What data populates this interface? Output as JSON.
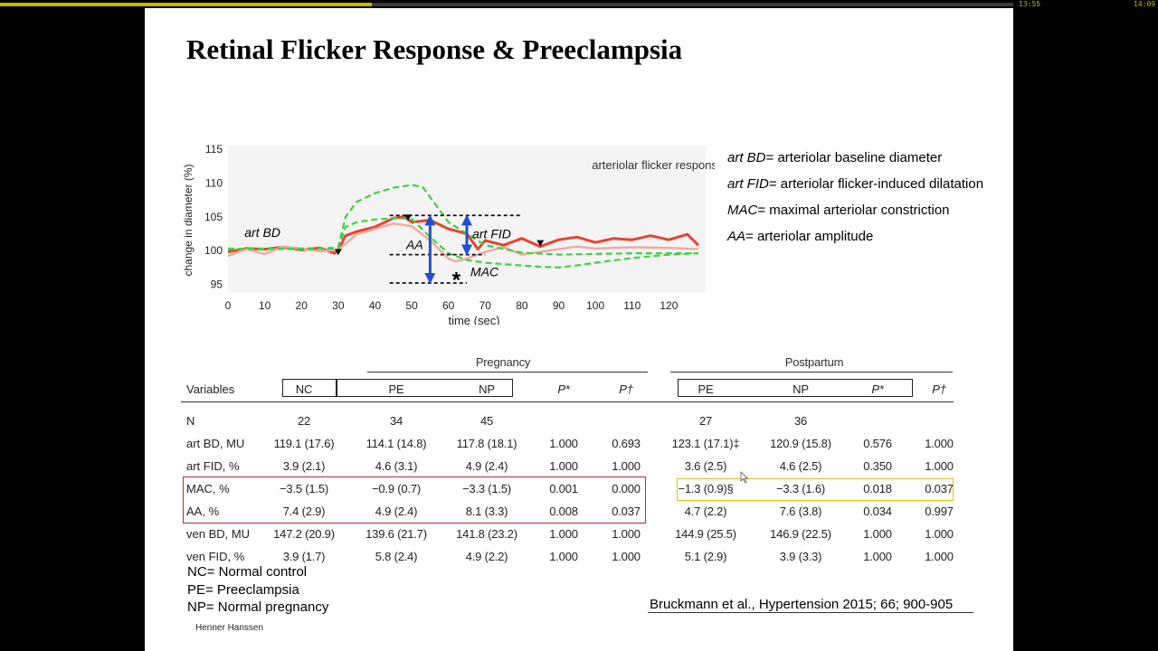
{
  "player": {
    "time_elapsed": "13:55",
    "time_total": "14:09",
    "progress": 0.367,
    "buffered": 0.145,
    "progress_color": "#c9b400"
  },
  "slide": {
    "title": "Retinal Flicker Response & Preeclampsia",
    "author": "Henner Hanssen",
    "citation": "Bruckmann et al., Hypertension 2015; 66; 900-905"
  },
  "legend": [
    {
      "term": "art BD",
      "def": "= arteriolar baseline diameter"
    },
    {
      "term": "art FID",
      "def": "= arteriolar flicker-induced dilatation"
    },
    {
      "term": "MAC",
      "def": "= maximal arteriolar constriction"
    },
    {
      "term": "AA",
      "def": "= arteriolar amplitude"
    }
  ],
  "notes": [
    "NC= Normal control",
    "PE= Preeclampsia",
    "NP= Normal pregnancy"
  ],
  "chart_data": {
    "type": "line",
    "title": "arteriolar flicker response",
    "xlabel": "time (sec)",
    "ylabel": "change in diameter (%)",
    "xlim": [
      0,
      130
    ],
    "ylim": [
      94,
      115
    ],
    "xticks": [
      0,
      10,
      20,
      30,
      40,
      50,
      60,
      70,
      80,
      90,
      100,
      110,
      120
    ],
    "yticks": [
      95,
      100,
      105,
      110,
      115
    ],
    "annotations": {
      "art_bd": "art BD",
      "art_fid": "art FID",
      "aa": "AA",
      "mac": "MAC",
      "star": "*"
    },
    "series": [
      {
        "color": "#e8432e",
        "x": [
          0,
          5,
          10,
          15,
          20,
          25,
          29,
          30,
          32,
          35,
          40,
          45,
          48,
          50,
          55,
          60,
          65,
          68,
          70,
          75,
          80,
          85,
          90,
          95,
          100,
          105,
          110,
          115,
          120,
          125,
          128
        ],
        "y": [
          99.8,
          100.3,
          100.2,
          100.5,
          100.1,
          100.4,
          99.6,
          100.0,
          102.2,
          102.8,
          103.5,
          104.8,
          105.0,
          104.2,
          104.5,
          103.2,
          102.5,
          100.2,
          101.5,
          100.8,
          101.8,
          100.6,
          101.6,
          102.0,
          101.2,
          101.8,
          101.6,
          102.2,
          101.6,
          102.4,
          100.8
        ]
      },
      {
        "color": "#f2a8a0",
        "x": [
          0,
          5,
          10,
          15,
          20,
          25,
          30,
          35,
          40,
          45,
          50,
          55,
          60,
          62,
          65,
          70,
          75,
          80,
          85,
          90,
          95,
          100,
          110,
          120,
          128
        ],
        "y": [
          99.2,
          100.2,
          99.5,
          100.6,
          100.3,
          99.9,
          100.1,
          102.4,
          103.2,
          104.0,
          103.6,
          101.5,
          98.8,
          98.4,
          98.8,
          99.8,
          100.5,
          99.4,
          99.8,
          100.2,
          100.6,
          100.3,
          100.5,
          100.4,
          100.2
        ]
      },
      {
        "color": "#3cd33c",
        "dashed": true,
        "x": [
          0,
          10,
          20,
          29,
          30,
          32,
          35,
          40,
          45,
          50,
          53,
          60,
          70,
          80,
          90,
          100,
          110,
          120,
          128
        ],
        "y": [
          100.3,
          100.2,
          100.3,
          100.4,
          100.5,
          105.0,
          107.2,
          108.5,
          109.3,
          109.7,
          109.4,
          104.2,
          100.8,
          99.7,
          99.4,
          99.5,
          99.6,
          99.6,
          99.6
        ]
      },
      {
        "color": "#3cd33c",
        "dashed": true,
        "x": [
          0,
          10,
          20,
          29,
          30,
          32,
          35,
          40,
          45,
          50,
          55,
          60,
          65,
          70,
          75,
          80,
          85,
          90,
          95,
          100,
          110,
          120,
          128
        ],
        "y": [
          100.2,
          100.3,
          100.2,
          100.3,
          100.4,
          103.5,
          104.2,
          104.6,
          104.8,
          104.7,
          102.0,
          99.6,
          98.6,
          98.2,
          98.0,
          97.8,
          97.6,
          97.5,
          97.8,
          98.2,
          98.9,
          99.4,
          99.6
        ]
      }
    ],
    "reference_lines": [
      {
        "from": 44,
        "to": 80,
        "y": 105.2
      },
      {
        "from": 44,
        "to": 70,
        "y": 99.4
      },
      {
        "from": 44,
        "to": 65,
        "y": 95.2
      }
    ],
    "arrows": [
      {
        "x": 55,
        "from": 105.0,
        "to": 95.4,
        "color": "#1f4fd8"
      },
      {
        "x": 65,
        "from": 105.0,
        "to": 99.6,
        "color": "#1f4fd8"
      }
    ],
    "markers": [
      {
        "x": 30,
        "y": 99.7
      },
      {
        "x": 49,
        "y": 104.8
      },
      {
        "x": 85,
        "y": 101.0
      }
    ]
  },
  "table": {
    "group_pregnancy": "Pregnancy",
    "group_postpartum": "Postpartum",
    "headers": [
      "Variables",
      "NC",
      "PE",
      "NP",
      "P*",
      "P†",
      "PE",
      "NP",
      "P*",
      "P†"
    ],
    "rows": [
      [
        "N",
        "22",
        "34",
        "45",
        "",
        "",
        "27",
        "36",
        "",
        ""
      ],
      [
        "art BD, MU",
        "119.1 (17.6)",
        "114.1 (14.8)",
        "117.8 (18.1)",
        "1.000",
        "0.693",
        "123.1 (17.1)‡",
        "120.9 (15.8)",
        "0.576",
        "1.000"
      ],
      [
        "art FID, %",
        "3.9 (2.1)",
        "4.6 (3.1)",
        "4.9 (2.4)",
        "1.000",
        "1.000",
        "3.6 (2.5)",
        "4.6 (2.5)",
        "0.350",
        "1.000"
      ],
      [
        "MAC, %",
        "−3.5 (1.5)",
        "−0.9 (0.7)",
        "−3.3 (1.5)",
        "0.001",
        "0.000",
        "−1.3 (0.9)§",
        "−3.3 (1.6)",
        "0.018",
        "0.037"
      ],
      [
        "AA, %",
        "7.4 (2.9)",
        "4.9 (2.4)",
        "8.1 (3.3)",
        "0.008",
        "0.037",
        "4.7 (2.2)",
        "7.6 (3.8)",
        "0.034",
        "0.997"
      ],
      [
        "ven BD, MU",
        "147.2 (20.9)",
        "139.6 (21.7)",
        "141.8 (23.2)",
        "1.000",
        "1.000",
        "144.9 (25.5)",
        "146.9 (22.5)",
        "1.000",
        "1.000"
      ],
      [
        "ven FID, %",
        "3.9 (1.7)",
        "5.8 (2.4)",
        "4.9 (2.2)",
        "1.000",
        "1.000",
        "5.1 (2.9)",
        "3.9 (3.3)",
        "1.000",
        "1.000"
      ]
    ],
    "highlight_colors": {
      "pregnancy": "#c0262d",
      "postpartum": "#e8b81a"
    }
  }
}
